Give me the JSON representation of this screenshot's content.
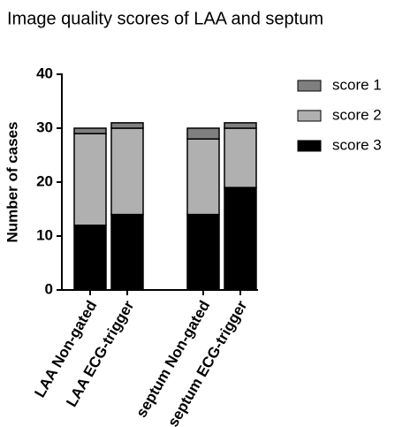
{
  "chart_data": {
    "type": "stacked-bar",
    "title": "Image quality scores of LAA and septum",
    "y_label": "Number of cases",
    "categories": [
      "LAA Non-gated",
      "LAA ECG-trigger",
      "septum Non-gated",
      "septum ECG-trigger"
    ],
    "series": [
      {
        "name": "score 1",
        "color": "#7f7f7f",
        "values": [
          1,
          1,
          2,
          1
        ]
      },
      {
        "name": "score 2",
        "color": "#b0b0b0",
        "values": [
          17,
          16,
          14,
          11
        ]
      },
      {
        "name": "score 3",
        "color": "#000000",
        "values": [
          12,
          14,
          14,
          19
        ]
      }
    ],
    "ylim": [
      0,
      40
    ],
    "yticks": [
      0,
      10,
      20,
      30,
      40
    ],
    "legend": "right"
  }
}
